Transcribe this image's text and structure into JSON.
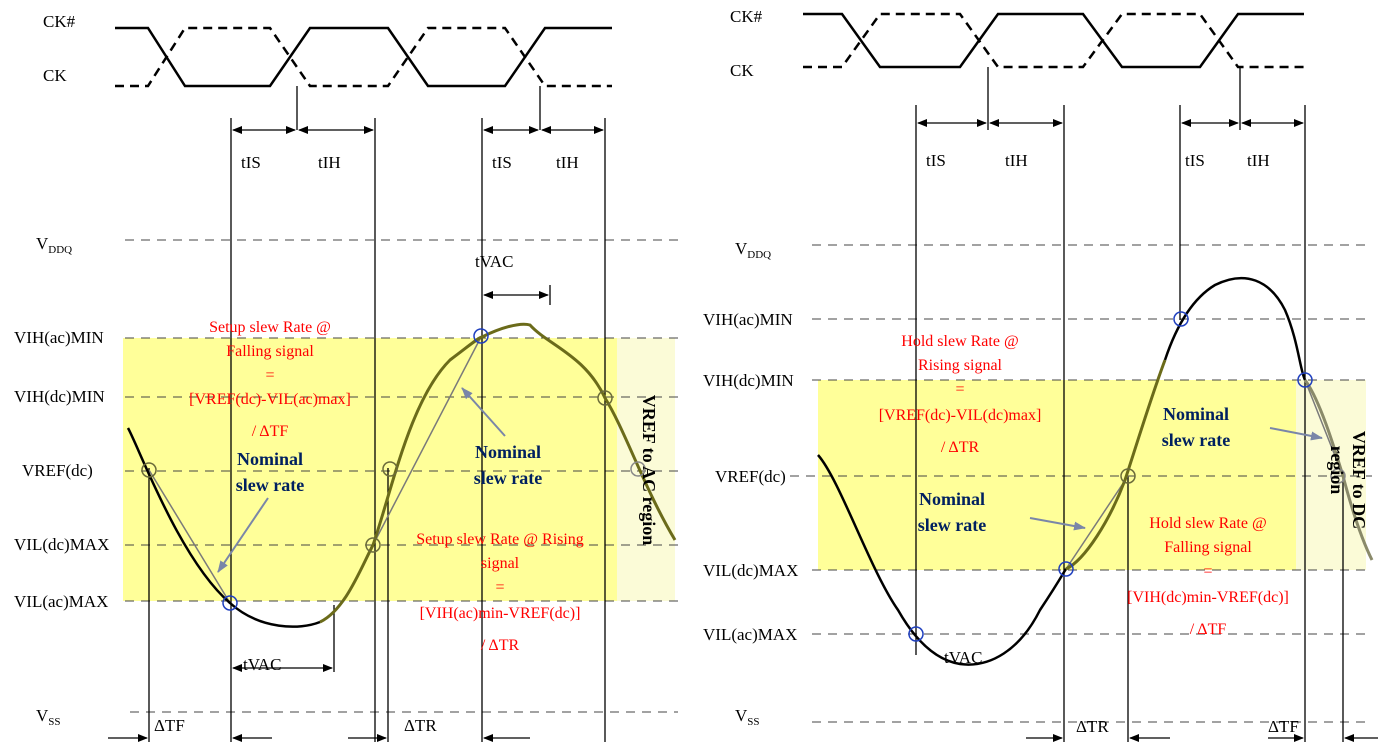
{
  "colors": {
    "highlight": "#ffff99",
    "highlight_light": "#fbfbd7",
    "signal": "#000000",
    "slope_curve": "#6b6b1a",
    "annotation": "#ff0000",
    "nominal_text": "#002060",
    "marker": "#1f3fbf"
  },
  "left": {
    "clock": {
      "ck_bar": "CK#",
      "ck": "CK"
    },
    "timings": {
      "t_is_1": "tIS",
      "t_ih_1": "tIH",
      "t_is_2": "tIS",
      "t_ih_2": "tIH",
      "t_vac_top": "tVAC",
      "t_vac_bottom": "tVAC"
    },
    "levels": {
      "vddq_main": "V",
      "vddq_sub": "DDQ",
      "vih_ac_min": "VIH(ac)MIN",
      "vih_dc_min": "VIH(dc)MIN",
      "vref_dc": "VREF(dc)",
      "vil_dc_max": "VIL(dc)MAX",
      "vil_ac_max": "VIL(ac)MAX",
      "vss_main": "V",
      "vss_sub": "SS"
    },
    "setup_falling": [
      "Setup slew Rate @",
      "Falling signal",
      "=",
      "[VREF(dc)-VIL(ac)max]",
      "/ ΔTF"
    ],
    "setup_rising": [
      "Setup slew Rate @ Rising",
      "signal",
      "=",
      "[VIH(ac)min-VREF(dc)]",
      "/ ΔTR"
    ],
    "nominal_1": [
      "Nominal",
      "slew rate"
    ],
    "nominal_2": [
      "Nominal",
      "slew rate"
    ],
    "region": "VREF to AC region",
    "delta_tf": "ΔTF",
    "delta_tr": "ΔTR"
  },
  "right": {
    "clock": {
      "ck_bar": "CK#",
      "ck": "CK"
    },
    "timings": {
      "t_is_1": "tIS",
      "t_ih_1": "tIH",
      "t_is_2": "tIS",
      "t_ih_2": "tIH",
      "t_vac": "tVAC"
    },
    "levels": {
      "vddq_main": "V",
      "vddq_sub": "DDQ",
      "vih_ac_min": "VIH(ac)MIN",
      "vih_dc_min": "VIH(dc)MIN",
      "vref_dc": "VREF(dc)",
      "vil_dc_max": "VIL(dc)MAX",
      "vil_ac_max": "VIL(ac)MAX",
      "vss_main": "V",
      "vss_sub": "SS"
    },
    "hold_rising": [
      "Hold slew Rate @",
      "Rising signal",
      "=",
      "[VREF(dc)-VIL(dc)max]",
      "/ ΔTR"
    ],
    "hold_falling": [
      "Hold slew Rate @",
      "Falling signal",
      "=",
      "[VIH(dc)min-VREF(dc)]",
      "/ ΔTF"
    ],
    "nominal_1": [
      "Nominal",
      "slew rate"
    ],
    "nominal_2": [
      "Nominal",
      "slew rate"
    ],
    "region_line_1": "VREF to DC",
    "region_line_2": "region",
    "delta_tr": "ΔTR",
    "delta_tf": "ΔTF"
  }
}
